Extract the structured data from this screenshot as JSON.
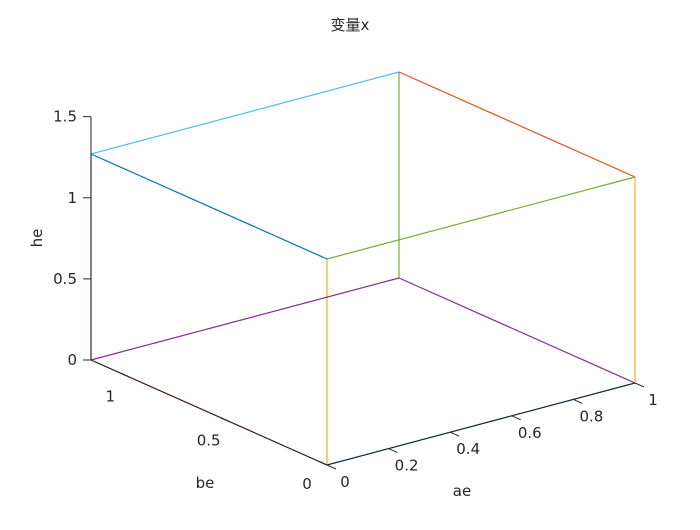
{
  "chart_data": {
    "type": "line",
    "title": "变量x",
    "xlabel": "ae",
    "ylabel": "be",
    "zlabel": "he",
    "xlim": [
      0,
      1
    ],
    "ylim": [
      0,
      1.2
    ],
    "zlim": [
      0,
      1.5
    ],
    "x_ticks": [
      "0",
      "0.2",
      "0.4",
      "0.6",
      "0.8",
      "1"
    ],
    "y_ticks": [
      "0",
      "0.5",
      "1"
    ],
    "z_ticks": [
      "0",
      "0.5",
      "1",
      "1.5"
    ],
    "grid": false,
    "series": [
      {
        "color": "#0072BD",
        "x": [
          0,
          1
        ],
        "y": [
          0,
          0
        ],
        "z": [
          0,
          0
        ]
      },
      {
        "color": "#D95319",
        "x": [
          0,
          0
        ],
        "y": [
          0,
          1.2
        ],
        "z": [
          0,
          0
        ]
      },
      {
        "color": "#EDB120",
        "x": [
          0,
          0
        ],
        "y": [
          0,
          0
        ],
        "z": [
          0,
          1.27
        ]
      },
      {
        "color": "#7E2F8E",
        "x": [
          0,
          1
        ],
        "y": [
          1.2,
          1.2
        ],
        "z": [
          0,
          0
        ]
      },
      {
        "color": "#7E2F8E",
        "x": [
          1,
          1
        ],
        "y": [
          0,
          1.2
        ],
        "z": [
          0,
          0
        ]
      },
      {
        "color": "#7E2F8E",
        "x": [
          0,
          0
        ],
        "y": [
          1.2,
          1.2
        ],
        "z": [
          0,
          1.27
        ]
      },
      {
        "color": "#0072BD",
        "x": [
          0,
          0
        ],
        "y": [
          0,
          1.2
        ],
        "z": [
          1.27,
          1.27
        ]
      },
      {
        "color": "#4DBEEE",
        "x": [
          0,
          1
        ],
        "y": [
          1.2,
          1.2
        ],
        "z": [
          1.27,
          1.27
        ]
      },
      {
        "color": "#77AC30",
        "x": [
          0,
          1
        ],
        "y": [
          0,
          0
        ],
        "z": [
          1.27,
          1.27
        ]
      },
      {
        "color": "#77AC30",
        "x": [
          1,
          1
        ],
        "y": [
          1.2,
          1.2
        ],
        "z": [
          0,
          1.27
        ]
      },
      {
        "color": "#D95319",
        "x": [
          1,
          1
        ],
        "y": [
          0,
          1.2
        ],
        "z": [
          1.27,
          1.27
        ]
      },
      {
        "color": "#EDB120",
        "x": [
          1,
          1
        ],
        "y": [
          0,
          0
        ],
        "z": [
          0,
          1.27
        ]
      }
    ]
  }
}
